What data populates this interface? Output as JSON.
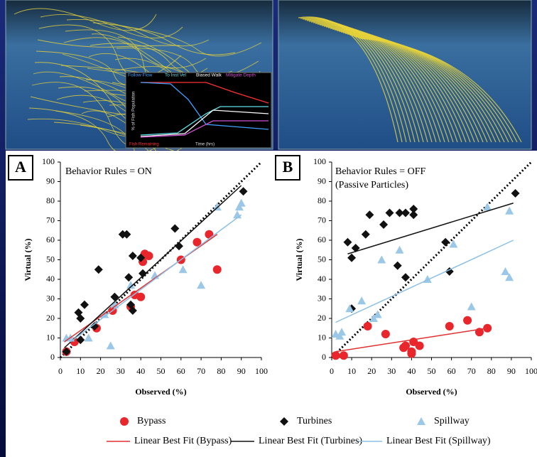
{
  "inset": {
    "legend": [
      {
        "name": "Follow Flow",
        "color": "#3fa0ff"
      },
      {
        "name": "To Inst Vel",
        "color": "#5ee0e8"
      },
      {
        "name": "Biased Walk",
        "color": "#ffffff"
      },
      {
        "name": "Mitigate Depth",
        "color": "#d050d0"
      }
    ],
    "remaining": "Fish Remaining",
    "xlabel": "Time (hrs)",
    "ylabel": "% of Fish Population"
  },
  "chart_data": [
    {
      "type": "scatter",
      "label": "A",
      "annotation": [
        "Behavior Rules = ON"
      ],
      "xlabel": "Observed (%)",
      "ylabel": "Virtual (%)",
      "xlim": [
        0,
        100
      ],
      "ylim": [
        0,
        100
      ],
      "xticks": [
        0,
        10,
        20,
        30,
        40,
        50,
        60,
        70,
        80,
        90,
        100
      ],
      "yticks": [
        0,
        10,
        20,
        30,
        40,
        50,
        60,
        70,
        80,
        90,
        100
      ],
      "series": [
        {
          "marker": "circle",
          "color": "#e8262b",
          "x": [
            3,
            7,
            18,
            26,
            35,
            37,
            40,
            41,
            42,
            44,
            60,
            68,
            74,
            78
          ],
          "values": [
            3,
            8,
            15,
            24,
            26,
            32,
            31,
            49,
            53,
            52,
            50,
            59,
            63,
            45
          ]
        },
        {
          "marker": "diamond",
          "color": "#111111",
          "x": [
            3,
            9,
            10,
            12,
            10,
            17,
            19,
            27,
            31,
            33,
            34,
            35,
            36,
            36,
            40,
            41,
            57,
            59,
            91
          ],
          "values": [
            3,
            23,
            20,
            27,
            9,
            16,
            45,
            31,
            63,
            63,
            41,
            27,
            24,
            52,
            51,
            43,
            66,
            57,
            85
          ]
        },
        {
          "marker": "triangle",
          "color": "#9cc8e8",
          "x": [
            3,
            5,
            14,
            22,
            25,
            27,
            35,
            47,
            61,
            70,
            78,
            88,
            89,
            90
          ],
          "values": [
            10,
            10,
            10,
            22,
            6,
            27,
            37,
            42,
            45,
            37,
            77,
            73,
            77,
            79
          ]
        }
      ],
      "fits": [
        {
          "color": "#e03030",
          "x": [
            2,
            78
          ],
          "values": [
            8,
            63
          ]
        },
        {
          "color": "#111111",
          "x": [
            2,
            90
          ],
          "values": [
            5,
            88
          ]
        },
        {
          "color": "#8cc0e6",
          "x": [
            5,
            90
          ],
          "values": [
            8,
            73
          ]
        }
      ],
      "reference_line": {
        "x": [
          0,
          100
        ],
        "values": [
          0,
          100
        ]
      }
    },
    {
      "type": "scatter",
      "label": "B",
      "annotation": [
        "Behavior Rules = OFF",
        "(Passive Particles)"
      ],
      "xlabel": "Observed (%)",
      "ylabel": "Virtual (%)",
      "xlim": [
        0,
        100
      ],
      "ylim": [
        0,
        100
      ],
      "xticks": [
        0,
        10,
        20,
        30,
        40,
        50,
        60,
        70,
        80,
        90,
        100
      ],
      "yticks": [
        0,
        10,
        20,
        30,
        40,
        50,
        60,
        70,
        80,
        90,
        100
      ],
      "series": [
        {
          "marker": "circle",
          "color": "#e8262b",
          "x": [
            2,
            6,
            18,
            27,
            36,
            37,
            40,
            40,
            41,
            44,
            59,
            68,
            74,
            78
          ],
          "values": [
            1,
            1,
            16,
            12,
            5,
            6,
            2,
            3,
            8,
            6,
            16,
            19,
            13,
            15
          ]
        },
        {
          "marker": "diamond",
          "color": "#111111",
          "x": [
            8,
            10,
            10,
            12,
            17,
            19,
            26,
            29,
            33,
            34,
            37,
            37,
            41,
            41,
            57,
            59,
            92
          ],
          "values": [
            59,
            51,
            25,
            56,
            63,
            73,
            68,
            74,
            47,
            74,
            74,
            41,
            73,
            76,
            59,
            44,
            84
          ]
        },
        {
          "marker": "triangle",
          "color": "#9cc8e8",
          "x": [
            2,
            4,
            5,
            9,
            15,
            21,
            23,
            25,
            34,
            48,
            61,
            70,
            78,
            87,
            89,
            89
          ],
          "values": [
            12,
            11,
            13,
            25,
            29,
            20,
            22,
            50,
            55,
            40,
            58,
            26,
            77,
            44,
            41,
            75
          ]
        }
      ],
      "fits": [
        {
          "color": "#e03030",
          "x": [
            2,
            78
          ],
          "values": [
            3,
            15
          ]
        },
        {
          "color": "#111111",
          "x": [
            8,
            91
          ],
          "values": [
            53,
            79
          ]
        },
        {
          "color": "#8cc0e6",
          "x": [
            2,
            91
          ],
          "values": [
            18,
            60
          ]
        }
      ],
      "reference_line": {
        "x": [
          0,
          100
        ],
        "values": [
          0,
          100
        ]
      }
    }
  ],
  "legend": [
    {
      "name": "Bypass",
      "marker": "circle",
      "color": "#e8262b"
    },
    {
      "name": "Turbines",
      "marker": "diamond",
      "color": "#111111"
    },
    {
      "name": "Spillway",
      "marker": "triangle",
      "color": "#9cc8e8"
    },
    {
      "name": "Linear Best Fit (Bypass)",
      "marker": "line",
      "color": "#e03030"
    },
    {
      "name": "Linear Best Fit (Turbines)",
      "marker": "line",
      "color": "#111111"
    },
    {
      "name": "Linear Best Fit (Spillway)",
      "marker": "line",
      "color": "#8cc0e6"
    }
  ]
}
